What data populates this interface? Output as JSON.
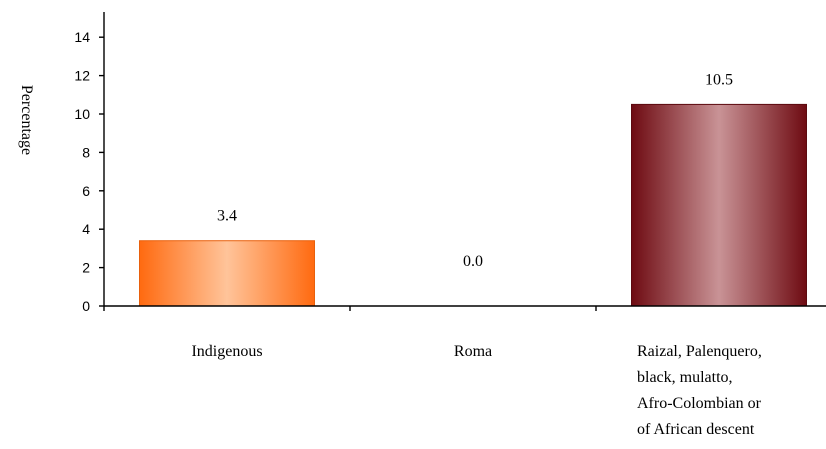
{
  "chart_data": {
    "type": "bar",
    "title": "",
    "xlabel": "",
    "ylabel": "Percentage",
    "ylim": [
      0,
      15
    ],
    "yticks": [
      0,
      2,
      4,
      6,
      8,
      10,
      12,
      14
    ],
    "grid": false,
    "legend": "none",
    "categories": [
      [
        "Indigenous"
      ],
      [
        "Roma"
      ],
      [
        "Raizal, Palenquero,",
        "black, mulatto,",
        "Afro-Colombian or",
        "of African descent"
      ]
    ],
    "values": [
      3.4,
      0.0,
      10.5
    ],
    "data_labels": [
      "3.4",
      "0.0",
      "10.5"
    ],
    "colors": [
      {
        "edge": "#ff6a10",
        "center": "#ffc49a",
        "border": "#e8600c"
      },
      {
        "edge": "#ffffff",
        "center": "#ffffff",
        "border": "#ffffff"
      },
      {
        "edge": "#6e0b12",
        "center": "#c99396",
        "border": "#5c0a10"
      }
    ]
  }
}
